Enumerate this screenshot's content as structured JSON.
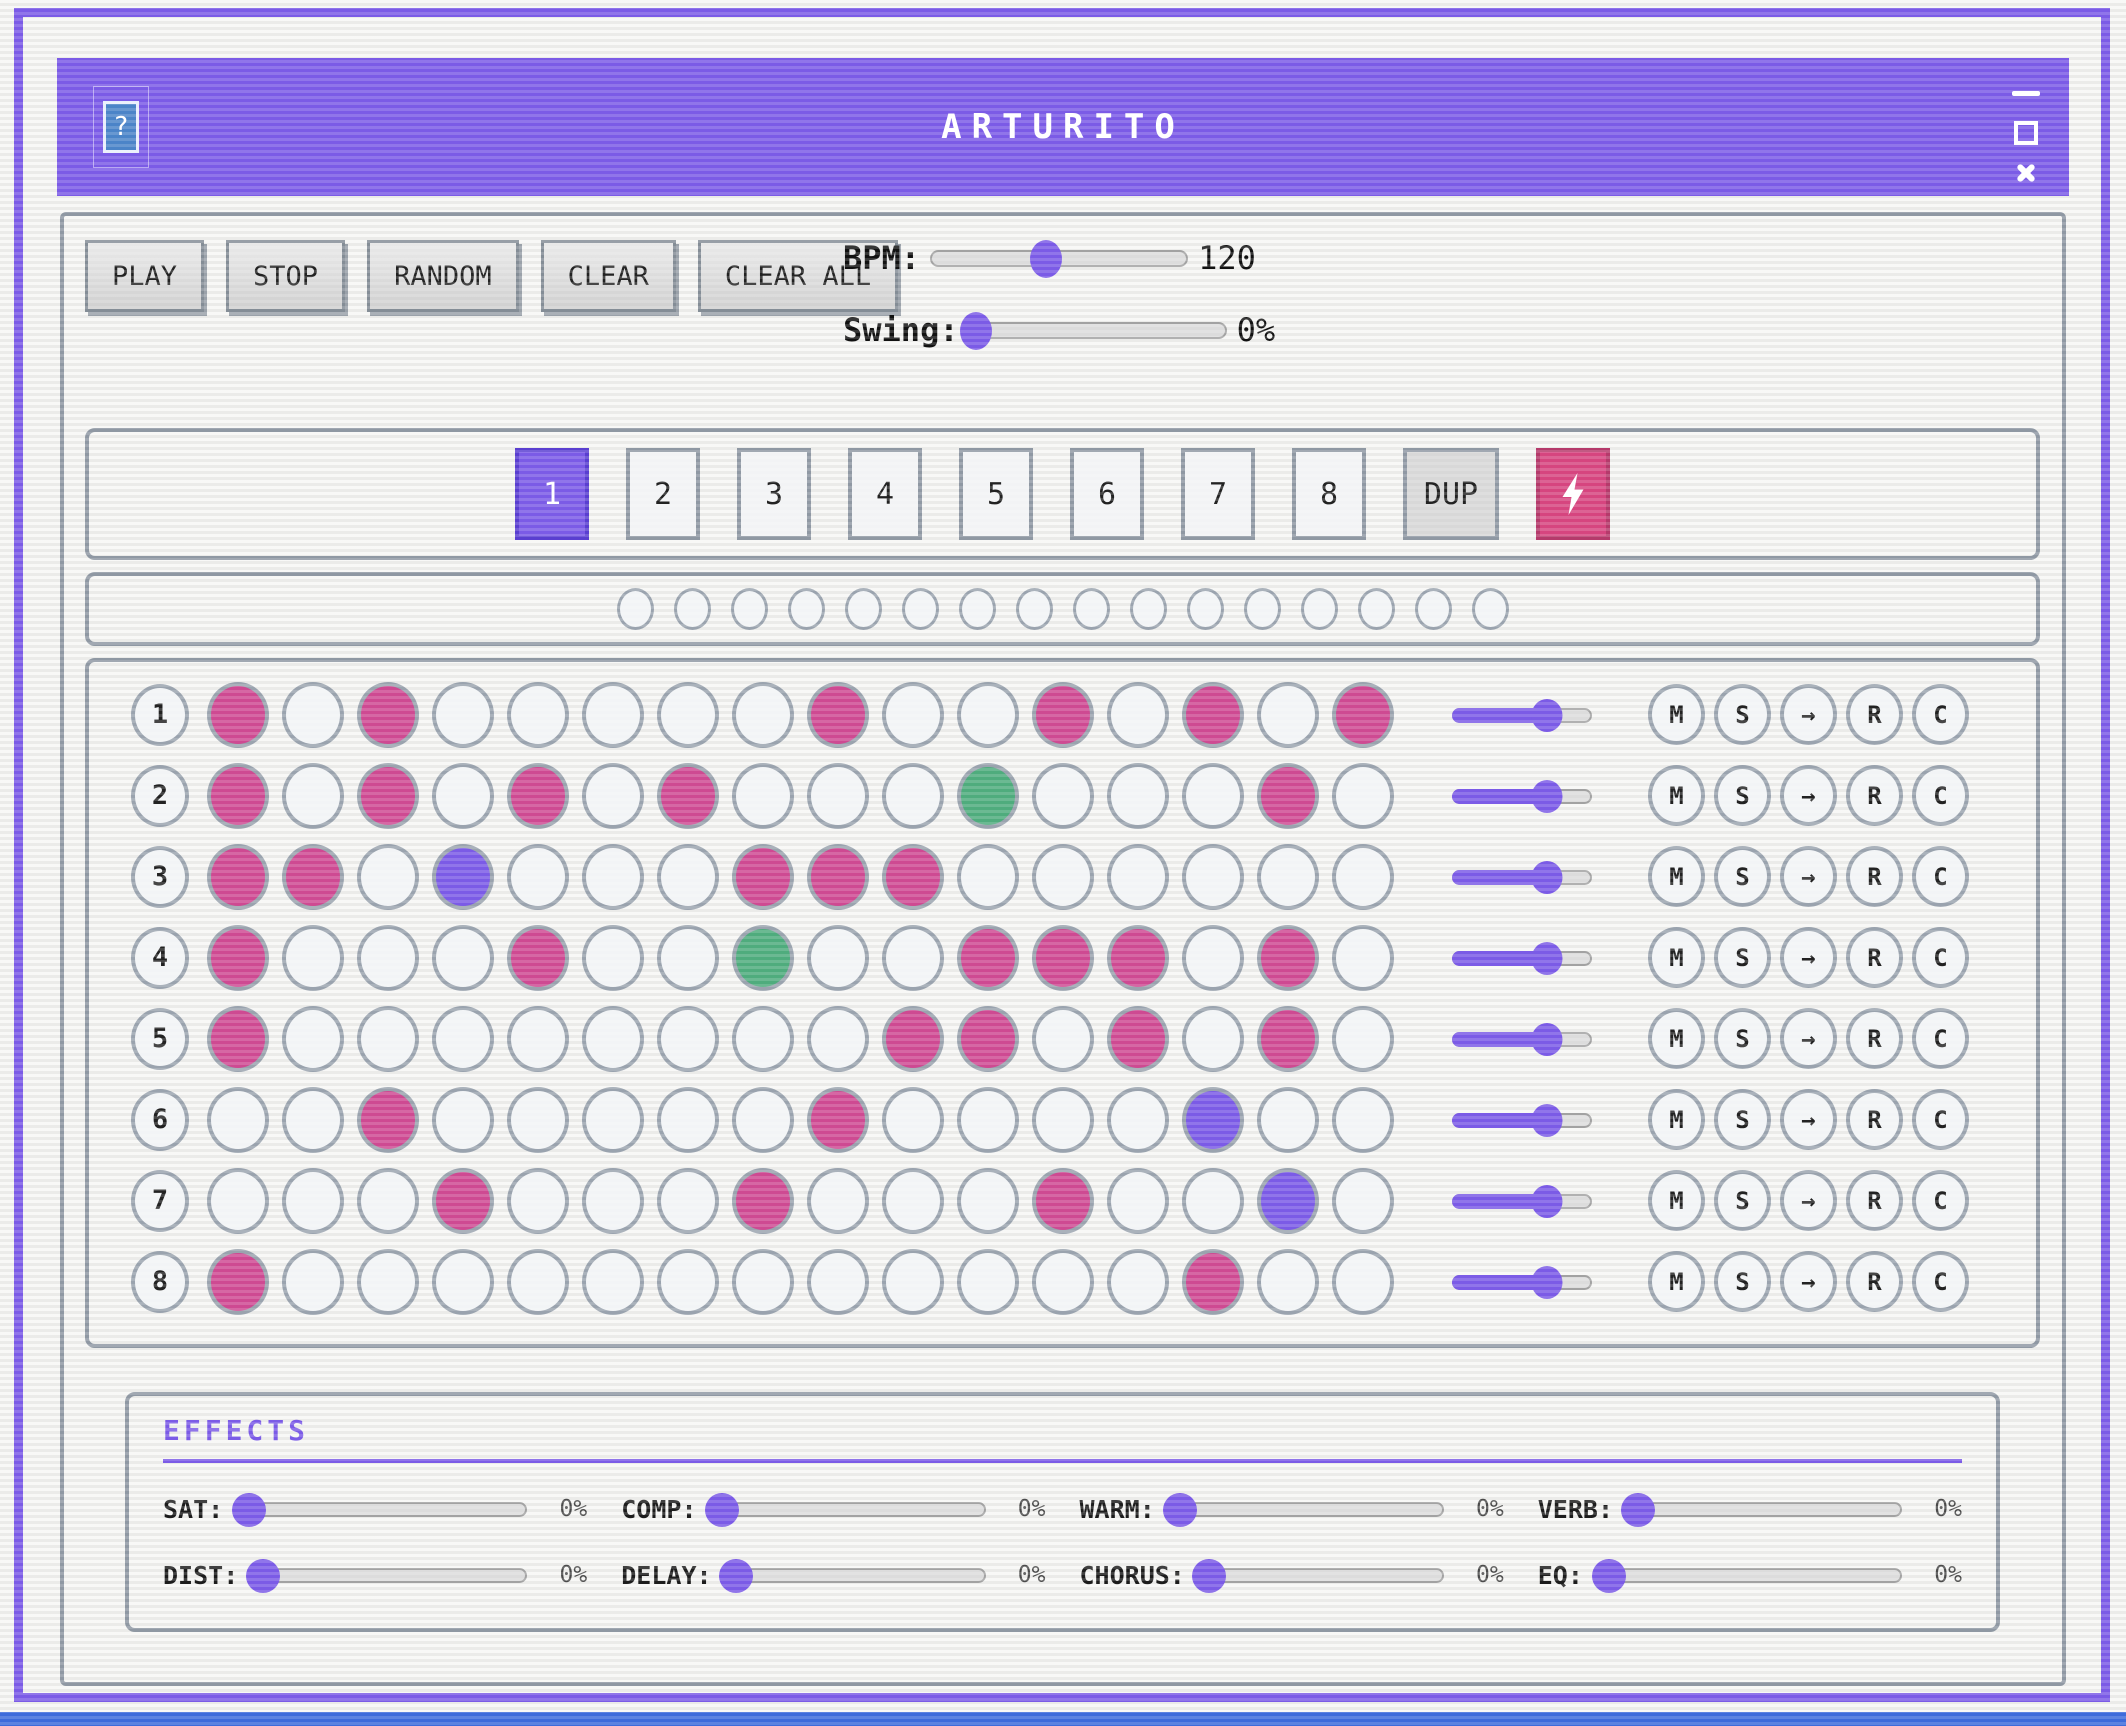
{
  "window": {
    "title": "ARTURITO",
    "help_label": "?",
    "icons": {
      "minimize": "bar",
      "maximize": "square",
      "close": "x",
      "help": "question-mark",
      "lightning": "bolt"
    }
  },
  "transport": {
    "buttons": [
      "PLAY",
      "STOP",
      "RANDOM",
      "CLEAR",
      "CLEAR ALL"
    ],
    "bpm": {
      "label": "BPM:",
      "value": "120",
      "percent": 45
    },
    "swing": {
      "label": "Swing:",
      "value": "0%",
      "percent": 3
    }
  },
  "patterns": {
    "numbers": [
      "1",
      "2",
      "3",
      "4",
      "5",
      "6",
      "7",
      "8"
    ],
    "active_index": 0,
    "dup_label": "DUP"
  },
  "indicator": {
    "count": 16
  },
  "sequencer": {
    "steps_per_row": 16,
    "row_buttons": [
      "M",
      "S",
      "→",
      "R",
      "C"
    ],
    "volume_percent": 68,
    "rows": [
      {
        "num": "1",
        "steps": [
          "pink",
          "off",
          "pink",
          "off",
          "off",
          "off",
          "off",
          "off",
          "pink",
          "off",
          "off",
          "pink",
          "off",
          "pink",
          "off",
          "pink"
        ]
      },
      {
        "num": "2",
        "steps": [
          "pink",
          "off",
          "pink",
          "off",
          "pink",
          "off",
          "pink",
          "off",
          "off",
          "off",
          "green",
          "off",
          "off",
          "off",
          "pink",
          "off"
        ]
      },
      {
        "num": "3",
        "steps": [
          "pink",
          "pink",
          "off",
          "purple",
          "off",
          "off",
          "off",
          "pink",
          "pink",
          "pink",
          "off",
          "off",
          "off",
          "off",
          "off",
          "off"
        ]
      },
      {
        "num": "4",
        "steps": [
          "pink",
          "off",
          "off",
          "off",
          "pink",
          "off",
          "off",
          "green",
          "off",
          "off",
          "pink",
          "pink",
          "pink",
          "off",
          "pink",
          "off"
        ]
      },
      {
        "num": "5",
        "steps": [
          "pink",
          "off",
          "off",
          "off",
          "off",
          "off",
          "off",
          "off",
          "off",
          "pink",
          "pink",
          "off",
          "pink",
          "off",
          "pink",
          "off"
        ]
      },
      {
        "num": "6",
        "steps": [
          "off",
          "off",
          "pink",
          "off",
          "off",
          "off",
          "off",
          "off",
          "pink",
          "off",
          "off",
          "off",
          "off",
          "purple",
          "off",
          "off"
        ]
      },
      {
        "num": "7",
        "steps": [
          "off",
          "off",
          "off",
          "pink",
          "off",
          "off",
          "off",
          "pink",
          "off",
          "off",
          "off",
          "pink",
          "off",
          "off",
          "purple",
          "off"
        ]
      },
      {
        "num": "8",
        "steps": [
          "pink",
          "off",
          "off",
          "off",
          "off",
          "off",
          "off",
          "off",
          "off",
          "off",
          "off",
          "off",
          "off",
          "pink",
          "off",
          "off"
        ]
      }
    ]
  },
  "effects": {
    "title": "EFFECTS",
    "rows": [
      [
        {
          "label": "SAT:",
          "value": "0%"
        },
        {
          "label": "COMP:",
          "value": "0%"
        },
        {
          "label": "WARM:",
          "value": "0%"
        },
        {
          "label": "VERB:",
          "value": "0%"
        }
      ],
      [
        {
          "label": "DIST:",
          "value": "0%"
        },
        {
          "label": "DELAY:",
          "value": "0%"
        },
        {
          "label": "CHORUS:",
          "value": "0%"
        },
        {
          "label": "EQ:",
          "value": "0%"
        }
      ]
    ]
  },
  "colors": {
    "accent": "#7B5BE6",
    "pink": "#CE4A92",
    "green": "#4FAC7D",
    "purple_step": "#7B5BE6",
    "lightning_bg": "#D6457F",
    "bottom_strip": "#3D6BDB"
  }
}
